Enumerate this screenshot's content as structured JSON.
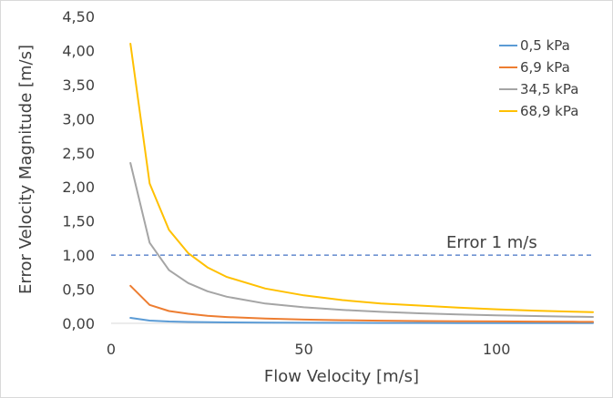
{
  "chart_data": {
    "type": "line",
    "title": "",
    "xlabel": "Flow Velocity [m/s]",
    "ylabel": "Error Velocity Magnitude [m/s]",
    "xlim": [
      0,
      125
    ],
    "ylim": [
      0,
      4.5
    ],
    "x_ticks": [
      "0",
      "50",
      "100"
    ],
    "y_ticks": [
      "0,00",
      "0,50",
      "1,00",
      "1,50",
      "2,00",
      "2,50",
      "3,00",
      "3,50",
      "4,00",
      "4,50"
    ],
    "grid": false,
    "legend_position": "top-right",
    "x": [
      5,
      10,
      15,
      20,
      25,
      30,
      40,
      50,
      60,
      70,
      80,
      90,
      100,
      110,
      120,
      125
    ],
    "series": [
      {
        "name": "0,5 kPa",
        "color": "#5b9bd5",
        "values": [
          0.08,
          0.04,
          0.027,
          0.02,
          0.016,
          0.014,
          0.01,
          0.008,
          0.007,
          0.006,
          0.005,
          0.0045,
          0.004,
          0.0037,
          0.0034,
          0.0033
        ]
      },
      {
        "name": "6,9 kPa",
        "color": "#ed7d31",
        "values": [
          0.55,
          0.27,
          0.18,
          0.14,
          0.11,
          0.092,
          0.069,
          0.055,
          0.046,
          0.039,
          0.034,
          0.031,
          0.028,
          0.025,
          0.023,
          0.022
        ]
      },
      {
        "name": "34,5 kPa",
        "color": "#a5a5a5",
        "values": [
          2.35,
          1.18,
          0.78,
          0.59,
          0.47,
          0.39,
          0.29,
          0.235,
          0.196,
          0.168,
          0.147,
          0.131,
          0.118,
          0.107,
          0.098,
          0.094
        ]
      },
      {
        "name": "68,9 kPa",
        "color": "#ffc000",
        "values": [
          4.1,
          2.05,
          1.37,
          1.03,
          0.82,
          0.68,
          0.51,
          0.41,
          0.34,
          0.29,
          0.26,
          0.23,
          0.205,
          0.186,
          0.171,
          0.164
        ]
      }
    ],
    "reference_line": {
      "label": "Error 1 m/s",
      "y": 1.0,
      "color": "#4472c4",
      "style": "dashed"
    }
  }
}
